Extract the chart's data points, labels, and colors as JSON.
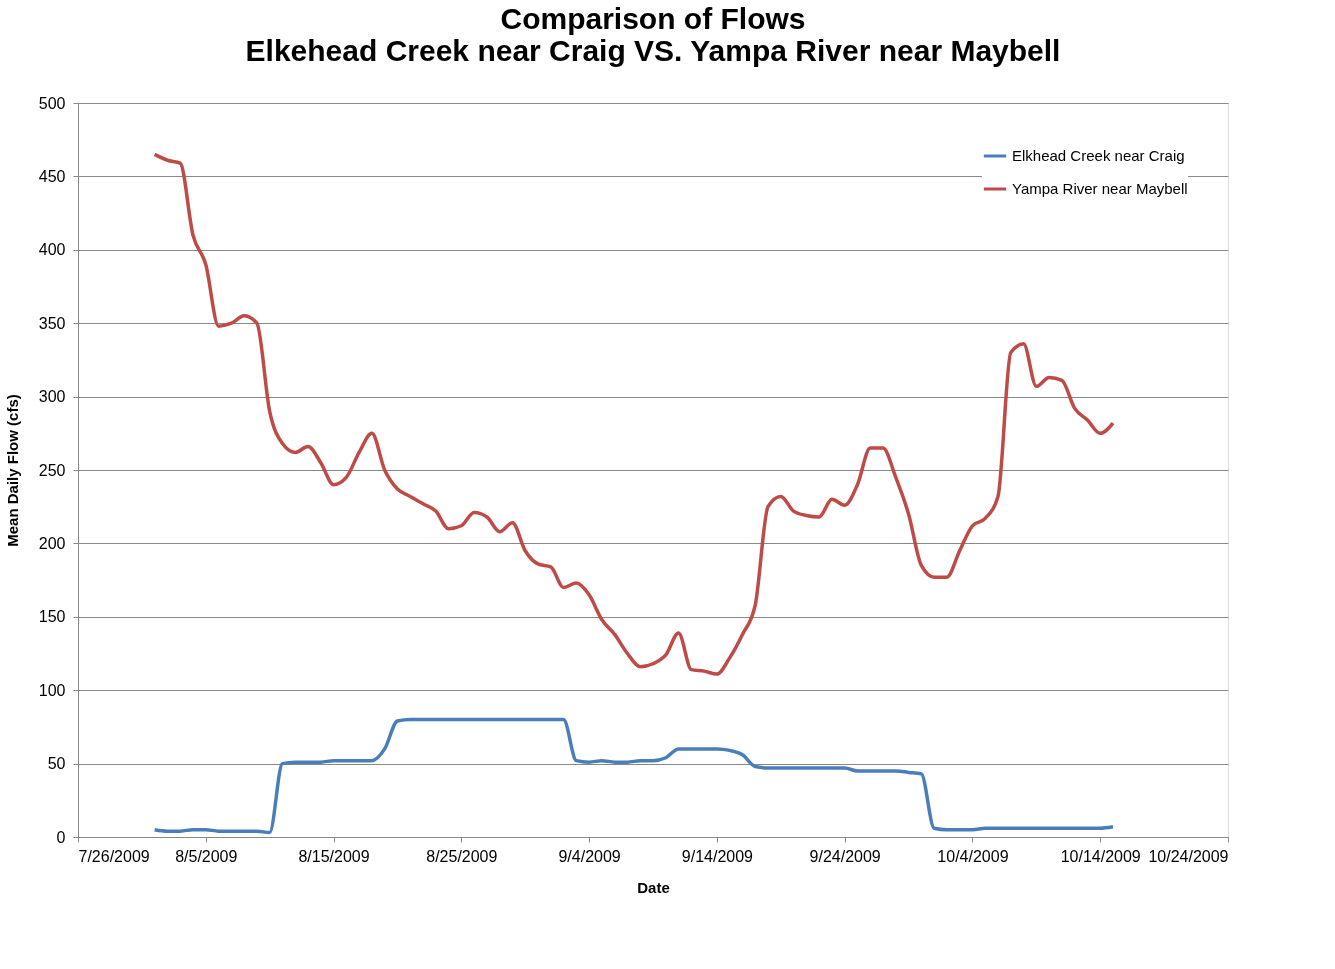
{
  "chart_data": {
    "type": "line",
    "title": [
      "Comparison of Flows",
      "Elkehead Creek near Craig VS. Yampa River near Maybell"
    ],
    "xlabel": "Date",
    "ylabel": "Mean Daily Flow (cfs)",
    "x": [
      "2009-08-01",
      "2009-08-02",
      "2009-08-03",
      "2009-08-04",
      "2009-08-05",
      "2009-08-06",
      "2009-08-07",
      "2009-08-08",
      "2009-08-09",
      "2009-08-10",
      "2009-08-11",
      "2009-08-12",
      "2009-08-13",
      "2009-08-14",
      "2009-08-15",
      "2009-08-16",
      "2009-08-17",
      "2009-08-18",
      "2009-08-19",
      "2009-08-20",
      "2009-08-21",
      "2009-08-22",
      "2009-08-23",
      "2009-08-24",
      "2009-08-25",
      "2009-08-26",
      "2009-08-27",
      "2009-08-28",
      "2009-08-29",
      "2009-08-30",
      "2009-08-31",
      "2009-09-01",
      "2009-09-02",
      "2009-09-03",
      "2009-09-04",
      "2009-09-05",
      "2009-09-06",
      "2009-09-07",
      "2009-09-08",
      "2009-09-09",
      "2009-09-10",
      "2009-09-11",
      "2009-09-12",
      "2009-09-13",
      "2009-09-14",
      "2009-09-15",
      "2009-09-16",
      "2009-09-17",
      "2009-09-18",
      "2009-09-19",
      "2009-09-20",
      "2009-09-21",
      "2009-09-22",
      "2009-09-23",
      "2009-09-24",
      "2009-09-25",
      "2009-09-26",
      "2009-09-27",
      "2009-09-28",
      "2009-09-29",
      "2009-09-30",
      "2009-10-01",
      "2009-10-02",
      "2009-10-03",
      "2009-10-04",
      "2009-10-05",
      "2009-10-06",
      "2009-10-07",
      "2009-10-08",
      "2009-10-09",
      "2009-10-10",
      "2009-10-11",
      "2009-10-12",
      "2009-10-13",
      "2009-10-14",
      "2009-10-15"
    ],
    "series": [
      {
        "name": "Elkhead Creek near Craig",
        "color": "#4a7ebb",
        "values": [
          5,
          4,
          4,
          5,
          5,
          4,
          4,
          4,
          4,
          3,
          50,
          51,
          51,
          51,
          52,
          52,
          52,
          52,
          60,
          79,
          80,
          80,
          80,
          80,
          80,
          80,
          80,
          80,
          80,
          80,
          80,
          80,
          80,
          52,
          51,
          52,
          51,
          51,
          52,
          52,
          54,
          60,
          60,
          60,
          60,
          59,
          56,
          48,
          47,
          47,
          47,
          47,
          47,
          47,
          47,
          45,
          45,
          45,
          45,
          44,
          43,
          6,
          5,
          5,
          5,
          6,
          6,
          6,
          6,
          6,
          6,
          6,
          6,
          6,
          6,
          7
        ]
      },
      {
        "name": "Yampa River near Maybell",
        "color": "#be4b48",
        "values": [
          465,
          461,
          459,
          410,
          390,
          348,
          350,
          355,
          350,
          290,
          268,
          262,
          266,
          255,
          240,
          245,
          262,
          275,
          250,
          237,
          232,
          227,
          222,
          210,
          212,
          221,
          218,
          208,
          214,
          195,
          186,
          184,
          170,
          173,
          165,
          148,
          138,
          125,
          116,
          118,
          124,
          139,
          114,
          113,
          111,
          122,
          138,
          158,
          225,
          232,
          222,
          219,
          218,
          230,
          226,
          240,
          265,
          265,
          245,
          220,
          185,
          177,
          177,
          195,
          212,
          217,
          232,
          330,
          336,
          307,
          313,
          311,
          292,
          284,
          275,
          282
        ]
      }
    ],
    "xlim": [
      "2009-07-26",
      "2009-10-24"
    ],
    "xticks": [
      {
        "value": "2009-07-26",
        "label": "7/26/2009"
      },
      {
        "value": "2009-08-05",
        "label": "8/5/2009"
      },
      {
        "value": "2009-08-15",
        "label": "8/15/2009"
      },
      {
        "value": "2009-08-25",
        "label": "8/25/2009"
      },
      {
        "value": "2009-09-04",
        "label": "9/4/2009"
      },
      {
        "value": "2009-09-14",
        "label": "9/14/2009"
      },
      {
        "value": "2009-09-24",
        "label": "9/24/2009"
      },
      {
        "value": "2009-10-04",
        "label": "10/4/2009"
      },
      {
        "value": "2009-10-14",
        "label": "10/14/2009"
      },
      {
        "value": "2009-10-24",
        "label": "10/24/2009"
      }
    ],
    "ylim": [
      0,
      500
    ],
    "yticks": [
      0,
      50,
      100,
      150,
      200,
      250,
      300,
      350,
      400,
      450,
      500
    ],
    "grid": "y",
    "legend": "top right",
    "marker": "none",
    "line_style": "solid"
  }
}
